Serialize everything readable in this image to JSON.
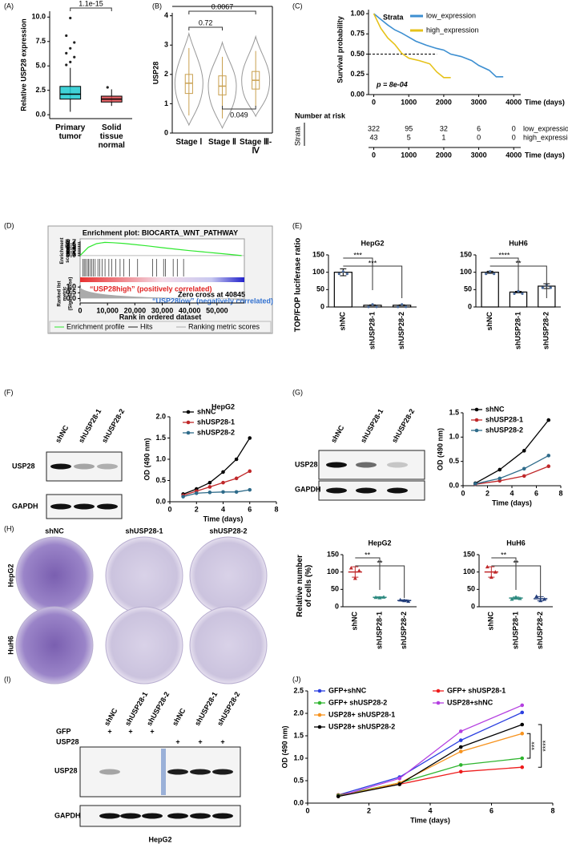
{
  "panels": [
    {
      "label": "(A)",
      "type": "box",
      "ylabel": "Relative USP28 expression",
      "categories": [
        "Primary tumor",
        "Solid tissue normal"
      ],
      "colors": [
        "#1fcad0",
        "#e0484d"
      ],
      "ylim": [
        -0.4,
        10.6
      ],
      "yticks": [
        {
          "value": 0,
          "label": "0.0"
        },
        {
          "value": 2.5,
          "label": "2.5"
        },
        {
          "value": 5,
          "label": "5.0"
        },
        {
          "value": 7.5,
          "label": "7.5"
        },
        {
          "value": 10,
          "label": "10.0"
        }
      ],
      "boxes": [
        {
          "whislo": 0.3,
          "q1": 1.6,
          "med": 2.1,
          "q3": 2.9,
          "whishi": 4.8
        },
        {
          "whislo": 0.9,
          "q1": 1.3,
          "med": 1.6,
          "q3": 1.9,
          "whishi": 2.6
        }
      ],
      "outliers": [
        [
          5.1,
          5.4,
          5.9,
          6.3,
          6.8,
          7.4,
          8.1,
          9.9
        ],
        [
          2.8
        ]
      ],
      "comparisons": [
        {
          "pair": [
            0,
            1
          ],
          "label": "1.1e-15"
        }
      ]
    },
    {
      "label": "(B)",
      "type": "violin",
      "ylabel": "USP28",
      "categories": [
        "Stage Ⅰ",
        "Stage Ⅱ",
        "Stage Ⅲ-Ⅳ"
      ],
      "colors": [
        "#f2b65e",
        "#f2b65e",
        "#f2b65e"
      ],
      "ylim": [
        0,
        4.1
      ],
      "yticks": [
        0,
        1,
        2,
        3,
        4
      ],
      "boxes": [
        {
          "whislo": 0.6,
          "q1": 1.35,
          "med": 1.7,
          "q3": 2.0,
          "whishi": 2.9
        },
        {
          "whislo": 0.5,
          "q1": 1.3,
          "med": 1.6,
          "q3": 1.95,
          "whishi": 2.6
        },
        {
          "whislo": 0.9,
          "q1": 1.5,
          "med": 1.8,
          "q3": 2.1,
          "whishi": 2.8
        }
      ],
      "comparisons": [
        {
          "pair": [
            0,
            2
          ],
          "label": "0.0067"
        },
        {
          "pair": [
            0,
            1
          ],
          "label": "0.72"
        },
        {
          "pair": [
            1,
            2
          ],
          "label": "0.049"
        }
      ]
    },
    {
      "label": "(C)",
      "type": "km",
      "ylabel": "Survival probability",
      "xlabel": "Time (days)",
      "legend_title": "Strata",
      "p_value": "p = 8e-04",
      "xlim": [
        -150,
        4200
      ],
      "xticks": [
        0,
        1000,
        2000,
        3000,
        4000
      ],
      "ylim": [
        0,
        1.05
      ],
      "yticks": [
        {
          "value": 0,
          "label": "0.00"
        },
        {
          "value": 0.25,
          "label": "0.25"
        },
        {
          "value": 0.5,
          "label": "0.50"
        },
        {
          "value": 0.75,
          "label": "0.75"
        },
        {
          "value": 1,
          "label": "1.00"
        }
      ],
      "series": [
        {
          "name": "low_expression",
          "color": "#3d8fd1",
          "x": [
            0,
            200,
            400,
            600,
            800,
            1000,
            1200,
            1500,
            1800,
            2000,
            2200,
            2500,
            2800,
            3000,
            3300,
            3500,
            3700
          ],
          "values": [
            1,
            0.93,
            0.86,
            0.8,
            0.76,
            0.71,
            0.66,
            0.61,
            0.57,
            0.55,
            0.5,
            0.47,
            0.42,
            0.36,
            0.3,
            0.22,
            0.22
          ]
        },
        {
          "name": "high_expression",
          "color": "#e6c21a",
          "x": [
            0,
            200,
            400,
            600,
            800,
            1000,
            1300,
            1600,
            1800,
            2000,
            2200
          ],
          "values": [
            1,
            0.82,
            0.7,
            0.62,
            0.51,
            0.45,
            0.42,
            0.38,
            0.28,
            0.21,
            0.21
          ]
        }
      ],
      "risk_title": "Number at risk",
      "risk_label": "Strata",
      "risk_xlabel": "Time (days)",
      "risk_rows": [
        {
          "name": "low_expression",
          "counts": [
            322,
            95,
            32,
            6,
            0
          ]
        },
        {
          "name": "high_expression",
          "counts": [
            43,
            5,
            1,
            0,
            0
          ]
        }
      ]
    },
    {
      "label": "(D)",
      "type": "gsea",
      "title": "Enrichment plot: BIOCARTA_WNT_PATHWAY",
      "ylabel": "Enrichment score (ES)",
      "metric_label": "Ranked list metric (Signal2Noise)",
      "xlabel": "Rank in ordered dataset",
      "xlim": [
        0,
        60000
      ],
      "xticks": [
        0,
        {
          "value": 10000,
          "label": "10,000"
        },
        {
          "value": 20000,
          "label": "20,000"
        },
        {
          "value": 30000,
          "label": "30,000"
        },
        {
          "value": 40000,
          "label": "40,000"
        },
        {
          "value": 50000,
          "label": "50,000"
        }
      ],
      "ylim": [
        -0.05,
        0.78
      ],
      "yticks": [
        {
          "value": 0,
          "label": "0.0"
        },
        0.1,
        0.2,
        0.3,
        0.4,
        0.5,
        0.6,
        0.7
      ],
      "metric_ylim": [
        -0.25,
        1.15
      ],
      "metric_yticks": [
        {
          "value": 1,
          "label": "1.0"
        },
        0.5,
        {
          "value": 0,
          "label": "0.0"
        }
      ],
      "x": [
        0,
        3000,
        6000,
        9000,
        12000,
        16000,
        20000,
        25000,
        30000,
        35000,
        40000,
        45000,
        50000,
        55000,
        59000
      ],
      "values": [
        0,
        0.45,
        0.65,
        0.72,
        0.7,
        0.66,
        0.6,
        0.52,
        0.43,
        0.35,
        0.27,
        0.2,
        0.13,
        0.06,
        0
      ],
      "color": "#2ee82e",
      "hits": [
        1000,
        1500,
        2000,
        2600,
        3100,
        3600,
        4200,
        4800,
        5500,
        6500,
        7200,
        8000,
        9100,
        10500,
        11600,
        13000,
        14600,
        16000,
        18000,
        21000,
        26500,
        28000,
        30500,
        31200,
        34000,
        35500,
        37800
      ],
      "positive_label": "“USP28high” (positively correlated)",
      "zero_cross": "Zero cross at 40845",
      "negative_label": "“USP28low” (negatively correlated)",
      "legend": [
        "Enrichment profile",
        "Hits",
        "Ranking metric scores"
      ]
    },
    {
      "label": "(E)",
      "type": "bar-group",
      "ylabel": "TOP/FOP luciferase ratio",
      "categories": [
        "shNC",
        "shUSP28-1",
        "shUSP28-2"
      ],
      "color": "#4a6a9a",
      "ylim": [
        0,
        150
      ],
      "yticks": [
        0,
        50,
        100,
        150
      ],
      "charts": [
        {
          "title": "HepG2",
          "values": [
            100,
            5,
            5
          ],
          "errors": [
            10,
            1,
            1
          ],
          "significance": [
            {
              "pair": [
                0,
                1
              ],
              "label": "***"
            },
            {
              "pair": [
                0,
                2
              ],
              "label": "***"
            }
          ]
        },
        {
          "title": "HuH6",
          "values": [
            100,
            43,
            60
          ],
          "errors": [
            3,
            2,
            7
          ],
          "significance": [
            {
              "pair": [
                0,
                1
              ],
              "label": "****"
            },
            {
              "pair": [
                0,
                2
              ],
              "label": "**"
            }
          ]
        }
      ]
    },
    {
      "label": "(F)",
      "type": "blot-line",
      "lanes": [
        "shNC",
        "shUSP28-1",
        "shUSP28-2"
      ],
      "rows": [
        "USP28",
        "GAPDH"
      ],
      "chart": {
        "title": "HepG2",
        "ylabel": "OD (490 nm)",
        "xlabel": "Time (days)",
        "x": [
          1,
          2,
          3,
          4,
          5,
          6
        ],
        "xlim": [
          0,
          8
        ],
        "xticks": [
          0,
          2,
          4,
          6,
          8
        ],
        "ylim": [
          0,
          2
        ],
        "yticks": [
          {
            "value": 0,
            "label": "0.0"
          },
          0.5,
          {
            "value": 1,
            "label": "1.0"
          },
          1.5,
          {
            "value": 2,
            "label": "2.0"
          }
        ],
        "series": [
          {
            "name": "shNC",
            "color": "#000000",
            "values": [
              0.18,
              0.3,
              0.45,
              0.7,
              1.0,
              1.5
            ]
          },
          {
            "name": "shUSP28-1",
            "color": "#c0282a",
            "values": [
              0.15,
              0.25,
              0.35,
              0.45,
              0.55,
              0.72
            ]
          },
          {
            "name": "shUSP28-2",
            "color": "#2e6b8a",
            "values": [
              0.12,
              0.2,
              0.22,
              0.23,
              0.23,
              0.28
            ]
          }
        ]
      }
    },
    {
      "label": "(G)",
      "type": "blot-line",
      "lanes": [
        "shNC",
        "shUSP28-1",
        "shUSP28-2"
      ],
      "rows": [
        "USP28",
        "GAPDH"
      ],
      "chart": {
        "ylabel": "OD (490 nm)",
        "xlabel": "Time (days)",
        "x": [
          1,
          3,
          5,
          7
        ],
        "xlim": [
          0,
          8
        ],
        "xticks": [
          0,
          2,
          4,
          6,
          8
        ],
        "ylim": [
          0,
          1.5
        ],
        "yticks": [
          {
            "value": 0,
            "label": "0.0"
          },
          0.5,
          {
            "value": 1,
            "label": "1.0"
          },
          1.5
        ],
        "series": [
          {
            "name": "shNC",
            "color": "#000000",
            "values": [
              0.05,
              0.33,
              0.72,
              1.35
            ]
          },
          {
            "name": "shUSP28-1",
            "color": "#c0282a",
            "values": [
              0.03,
              0.1,
              0.2,
              0.4
            ]
          },
          {
            "name": "shUSP28-2",
            "color": "#2e6b8a",
            "values": [
              0.04,
              0.15,
              0.35,
              0.62
            ]
          }
        ]
      }
    },
    {
      "label": "(H)",
      "type": "colony-dot",
      "columns": [
        "shNC",
        "shUSP28-1",
        "shUSP28-2"
      ],
      "rows": [
        "HepG2",
        "HuH6"
      ],
      "ylabel": "Relative number of cells (%)",
      "categories": [
        "shNC",
        "shUSP28-1",
        "shUSP28-2"
      ],
      "colors": [
        "#c0282a",
        "#2e8a80",
        "#223d7a"
      ],
      "ylim": [
        0,
        150
      ],
      "yticks": [
        0,
        50,
        100,
        150
      ],
      "charts": [
        {
          "title": "HepG2",
          "values": [
            100,
            27,
            18
          ],
          "errors": [
            15,
            1.5,
            2
          ],
          "points": [
            [
              112,
              82,
              104
            ],
            [
              27,
              26,
              28
            ],
            [
              20,
              18,
              16
            ]
          ],
          "significance": [
            {
              "pair": [
                0,
                1
              ],
              "label": "**"
            },
            {
              "pair": [
                0,
                2
              ],
              "label": "**"
            }
          ]
        },
        {
          "title": "HuH6",
          "values": [
            100,
            25,
            23
          ],
          "errors": [
            15,
            3,
            6
          ],
          "points": [
            [
              115,
              85,
              100
            ],
            [
              22,
              28,
              24
            ],
            [
              30,
              18,
              22
            ]
          ],
          "significance": [
            {
              "pair": [
                0,
                1
              ],
              "label": "**"
            },
            {
              "pair": [
                0,
                2
              ],
              "label": "**"
            }
          ]
        }
      ]
    },
    {
      "label": "(I)",
      "type": "blot",
      "lanes": [
        "shNC",
        "shUSP28-1",
        "shUSP28-2",
        "shNC",
        "shUSP28-1",
        "shUSP28-2"
      ],
      "conditions": [
        {
          "name": "GFP",
          "marks": [
            "+",
            "+",
            "+",
            null,
            null,
            null
          ]
        },
        {
          "name": "USP28",
          "marks": [
            null,
            null,
            null,
            "+",
            "+",
            "+"
          ]
        }
      ],
      "rows": [
        "USP28",
        "GAPDH"
      ],
      "caption": "HepG2"
    },
    {
      "label": "(J)",
      "type": "line",
      "ylabel": "OD (490 nm)",
      "xlabel": "Time (days)",
      "x": [
        1,
        3,
        5,
        7
      ],
      "xlim": [
        0,
        8
      ],
      "xticks": [
        0,
        2,
        4,
        6,
        8
      ],
      "ylim": [
        0,
        2.5
      ],
      "yticks": [
        {
          "value": 0,
          "label": "0.0"
        },
        0.5,
        {
          "value": 1,
          "label": "1.0"
        },
        1.5,
        {
          "value": 2,
          "label": "2.0"
        },
        2.5
      ],
      "series": [
        {
          "name": "GFP+shNC",
          "color": "#2b3fe0",
          "values": [
            0.18,
            0.58,
            1.4,
            2.02
          ]
        },
        {
          "name": "GFP+ shUSP28-1",
          "color": "#ee1c1c",
          "values": [
            0.18,
            0.42,
            0.7,
            0.8
          ]
        },
        {
          "name": "GFP+ shUSP28-2",
          "color": "#2fb52f",
          "values": [
            0.17,
            0.45,
            0.85,
            1.0
          ]
        },
        {
          "name": "USP28+shNC",
          "color": "#b43fe0",
          "values": [
            0.15,
            0.55,
            1.6,
            2.18
          ]
        },
        {
          "name": "USP28+ shUSP28-1",
          "color": "#f7931e",
          "values": [
            0.15,
            0.45,
            1.15,
            1.55
          ]
        },
        {
          "name": "USP28+ shUSP28-2",
          "color": "#000000",
          "values": [
            0.15,
            0.42,
            1.25,
            1.75
          ]
        }
      ],
      "significance": [
        {
          "pair": [
            2,
            4
          ],
          "label": "***"
        },
        {
          "pair": [
            1,
            5
          ],
          "label": "****"
        }
      ]
    }
  ]
}
